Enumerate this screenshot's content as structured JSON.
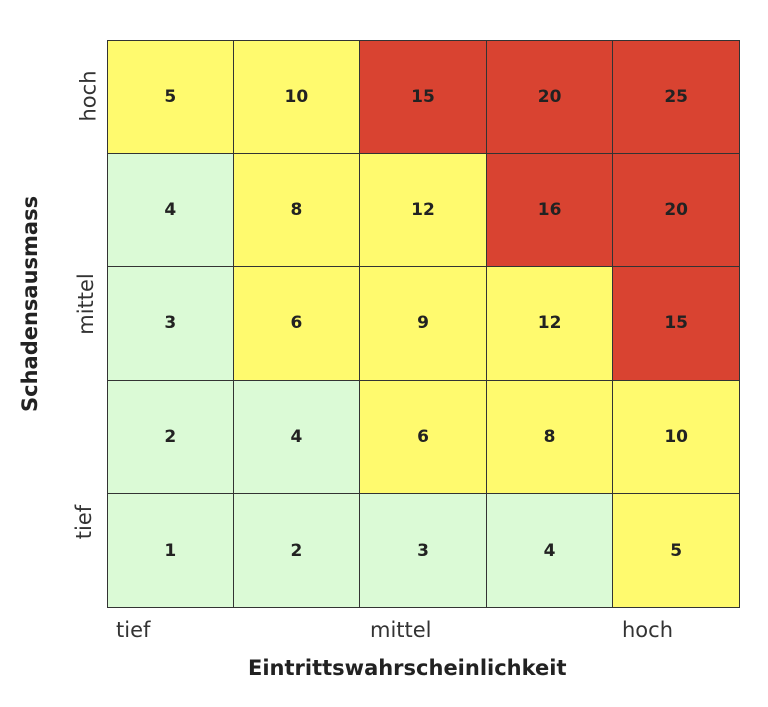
{
  "chart_data": {
    "type": "heatmap",
    "xlabel": "Eintrittswahrscheinlichkeit",
    "ylabel": "Schadensausmass",
    "x_tick_labels": [
      "tief",
      "mittel",
      "hoch"
    ],
    "y_tick_labels": [
      "tief",
      "mittel",
      "hoch"
    ],
    "rows_top_to_bottom": [
      [
        5,
        10,
        15,
        20,
        25
      ],
      [
        4,
        8,
        12,
        16,
        20
      ],
      [
        3,
        6,
        9,
        12,
        15
      ],
      [
        2,
        4,
        6,
        8,
        10
      ],
      [
        1,
        2,
        3,
        4,
        5
      ]
    ],
    "cell_levels_top_to_bottom": [
      [
        "medium",
        "medium",
        "high",
        "high",
        "high"
      ],
      [
        "low",
        "medium",
        "medium",
        "high",
        "high"
      ],
      [
        "low",
        "medium",
        "medium",
        "medium",
        "high"
      ],
      [
        "low",
        "low",
        "medium",
        "medium",
        "medium"
      ],
      [
        "low",
        "low",
        "low",
        "low",
        "medium"
      ]
    ],
    "colors": {
      "low": "#DBFAD6",
      "medium": "#FFFA6E",
      "high": "#D94331"
    }
  }
}
